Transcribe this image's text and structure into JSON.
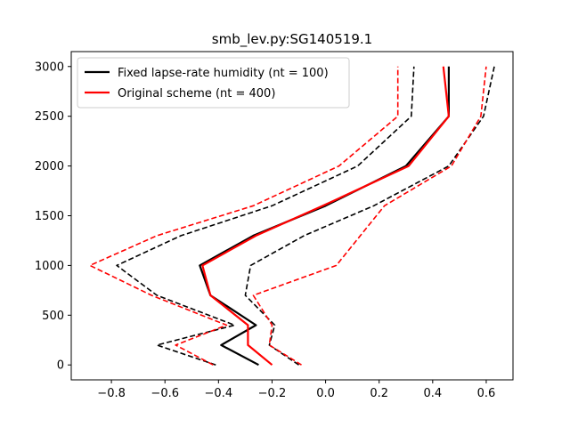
{
  "chart_data": {
    "type": "line",
    "title": "smb_lev.py:SG140519.1",
    "xlabel": "",
    "ylabel": "",
    "xlim": [
      -0.95,
      0.7
    ],
    "ylim": [
      -150,
      3150
    ],
    "x_ticks": [
      -0.8,
      -0.6,
      -0.4,
      -0.2,
      0.0,
      0.2,
      0.4,
      0.6
    ],
    "x_tick_labels": [
      "−0.8",
      "−0.6",
      "−0.4",
      "−0.2",
      "0.0",
      "0.2",
      "0.4",
      "0.6"
    ],
    "y_ticks": [
      0,
      500,
      1000,
      1500,
      2000,
      2500,
      3000
    ],
    "y_tick_labels": [
      "0",
      "500",
      "1000",
      "1500",
      "2000",
      "2500",
      "3000"
    ],
    "grid": false,
    "legend_position": "upper-left",
    "series": [
      {
        "name": "Fixed lapse-rate humidity (nt = 100)",
        "color": "#000000",
        "style": "solid",
        "in_legend": true,
        "points": [
          [
            -0.25,
            0
          ],
          [
            -0.39,
            200
          ],
          [
            -0.26,
            400
          ],
          [
            -0.43,
            700
          ],
          [
            -0.47,
            1000
          ],
          [
            -0.27,
            1300
          ],
          [
            0.0,
            1600
          ],
          [
            0.3,
            2000
          ],
          [
            0.46,
            2500
          ],
          [
            0.46,
            3000
          ]
        ]
      },
      {
        "name": "Original scheme (nt = 400)",
        "color": "#ff0000",
        "style": "solid",
        "in_legend": true,
        "points": [
          [
            -0.2,
            0
          ],
          [
            -0.29,
            200
          ],
          [
            -0.29,
            400
          ],
          [
            -0.43,
            700
          ],
          [
            -0.46,
            1000
          ],
          [
            -0.26,
            1300
          ],
          [
            -0.01,
            1600
          ],
          [
            0.31,
            2000
          ],
          [
            0.46,
            2500
          ],
          [
            0.44,
            3000
          ]
        ]
      },
      {
        "name": "",
        "color": "#000000",
        "style": "dashed",
        "in_legend": false,
        "points": [
          [
            -0.1,
            0
          ],
          [
            -0.21,
            200
          ],
          [
            -0.19,
            400
          ],
          [
            -0.3,
            700
          ],
          [
            -0.28,
            1000
          ],
          [
            -0.08,
            1300
          ],
          [
            0.18,
            1600
          ],
          [
            0.46,
            2000
          ],
          [
            0.59,
            2500
          ],
          [
            0.63,
            3000
          ]
        ]
      },
      {
        "name": "",
        "color": "#000000",
        "style": "dashed",
        "in_legend": false,
        "points": [
          [
            -0.41,
            0
          ],
          [
            -0.63,
            200
          ],
          [
            -0.34,
            400
          ],
          [
            -0.63,
            700
          ],
          [
            -0.78,
            1000
          ],
          [
            -0.54,
            1300
          ],
          [
            -0.2,
            1600
          ],
          [
            0.12,
            2000
          ],
          [
            0.32,
            2500
          ],
          [
            0.33,
            3000
          ]
        ]
      },
      {
        "name": "",
        "color": "#ff0000",
        "style": "dashed",
        "in_legend": false,
        "points": [
          [
            -0.09,
            0
          ],
          [
            -0.21,
            200
          ],
          [
            -0.2,
            400
          ],
          [
            -0.27,
            700
          ],
          [
            0.04,
            1000
          ],
          [
            0.22,
            1600
          ],
          [
            0.47,
            2000
          ],
          [
            0.58,
            2500
          ],
          [
            0.6,
            3000
          ]
        ]
      },
      {
        "name": "",
        "color": "#ff0000",
        "style": "dashed",
        "in_legend": false,
        "points": [
          [
            -0.42,
            0
          ],
          [
            -0.56,
            200
          ],
          [
            -0.37,
            400
          ],
          [
            -0.65,
            700
          ],
          [
            -0.88,
            1000
          ],
          [
            -0.63,
            1300
          ],
          [
            -0.27,
            1600
          ],
          [
            0.05,
            2000
          ],
          [
            0.27,
            2500
          ],
          [
            0.27,
            3000
          ]
        ]
      }
    ]
  }
}
